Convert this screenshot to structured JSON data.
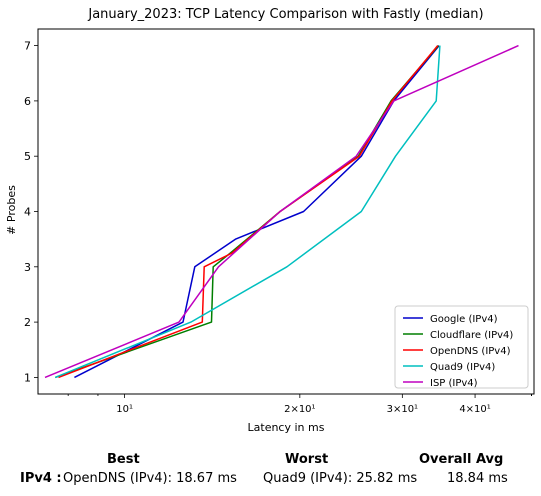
{
  "chart_data": {
    "type": "line",
    "title": "January_2023: TCP Latency Comparison with Fastly (median)",
    "xlabel": "Latency in ms",
    "ylabel": "# Probes",
    "xscale": "log",
    "xlim": [
      7.1,
      50.5
    ],
    "ylim": [
      0.7,
      7.3
    ],
    "x_ticks": [
      {
        "value": 10,
        "label": "10¹"
      },
      {
        "value": 20,
        "label": "2×10¹"
      },
      {
        "value": 30,
        "label": "3×10¹"
      },
      {
        "value": 40,
        "label": "4×10¹"
      }
    ],
    "y_ticks": [
      1,
      2,
      3,
      4,
      5,
      6,
      7
    ],
    "grid": false,
    "legend": "lower-right",
    "series": [
      {
        "name": "Google (IPv4)",
        "color": "#0000cc",
        "x": [
          8.2,
          12.6,
          13.2,
          15.5,
          20.3,
          25.5,
          29.0,
          34.7
        ],
        "y": [
          1,
          2,
          3,
          3.5,
          4,
          5,
          6,
          7
        ]
      },
      {
        "name": "Cloudflare (IPv4)",
        "color": "#007f00",
        "x": [
          7.6,
          14.1,
          14.2,
          15.2,
          18.5,
          25.2,
          28.7,
          34.6
        ],
        "y": [
          1,
          2,
          3,
          3.25,
          4,
          5,
          6,
          7
        ]
      },
      {
        "name": "OpenDNS (IPv4)",
        "color": "#ff0000",
        "x": [
          7.7,
          13.6,
          13.7,
          15.3,
          18.5,
          25.3,
          28.8,
          34.5
        ],
        "y": [
          1,
          2,
          3,
          3.25,
          4,
          5,
          6,
          7
        ]
      },
      {
        "name": "Quad9 (IPv4)",
        "color": "#00bfbf",
        "x": [
          7.6,
          13.0,
          19.0,
          25.5,
          29.2,
          34.3,
          34.8
        ],
        "y": [
          1,
          2,
          3,
          4,
          5,
          6,
          7
        ]
      },
      {
        "name": "ISP (IPv4)",
        "color": "#bf00bf",
        "x": [
          7.3,
          12.4,
          14.5,
          18.5,
          25.0,
          29.0,
          47.5
        ],
        "y": [
          1,
          2,
          3,
          4,
          5,
          6,
          7
        ]
      }
    ]
  },
  "summary": {
    "best_header": "Best",
    "worst_header": "Worst",
    "avg_header": "Overall Avg",
    "row_label": "IPv4 :",
    "best_value": "OpenDNS (IPv4): 18.67 ms",
    "worst_value": "Quad9 (IPv4): 25.82 ms",
    "avg_value": "18.84 ms"
  }
}
